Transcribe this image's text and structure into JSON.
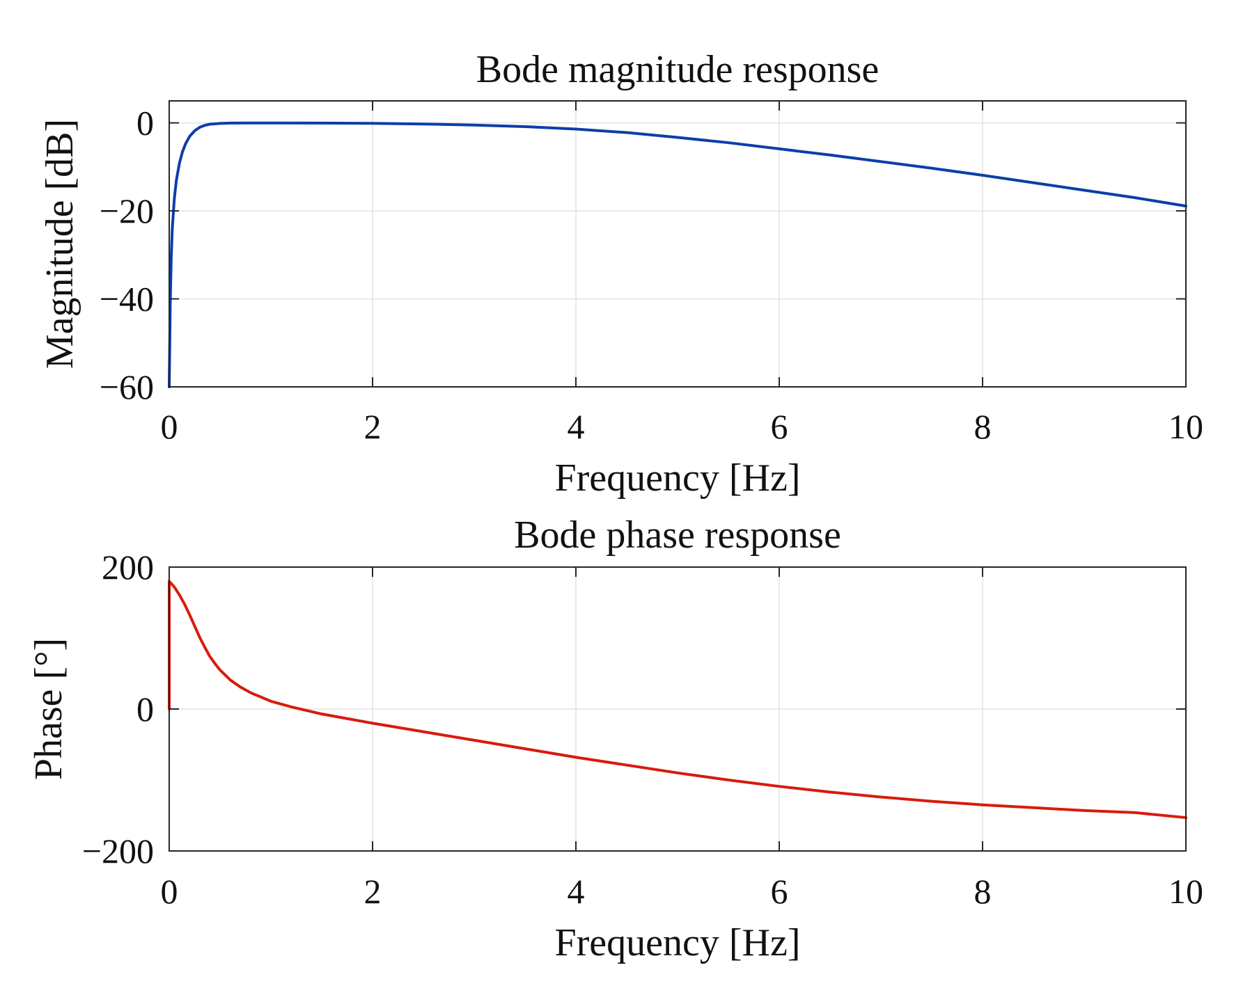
{
  "chart_data": [
    {
      "id": "magnitude",
      "type": "line",
      "title": "Bode magnitude response",
      "xlabel": "Frequency [Hz]",
      "ylabel": "Magnitude [dB]",
      "xlim": [
        0,
        10
      ],
      "ylim": [
        -60,
        5
      ],
      "xticks": [
        0,
        2,
        4,
        6,
        8,
        10
      ],
      "xtick_labels": [
        "0",
        "2",
        "4",
        "6",
        "8",
        "10"
      ],
      "yticks": [
        -60,
        -40,
        -20,
        0
      ],
      "ytick_labels": [
        "−60",
        "−40",
        "−20",
        "0"
      ],
      "grid": true,
      "series": [
        {
          "name": "Magnitude",
          "color": "#0b3fa8",
          "x": [
            0.0,
            0.01,
            0.02,
            0.03,
            0.05,
            0.07,
            0.1,
            0.13,
            0.16,
            0.2,
            0.25,
            0.3,
            0.35,
            0.4,
            0.5,
            0.6,
            0.8,
            1.0,
            1.5,
            2.0,
            2.5,
            3.0,
            3.5,
            4.0,
            4.5,
            5.0,
            5.5,
            6.0,
            6.5,
            7.0,
            7.5,
            8.0,
            8.5,
            9.0,
            9.5,
            10.0
          ],
          "y": [
            -60,
            -41.2,
            -30.5,
            -24.1,
            -17.3,
            -13.1,
            -9.2,
            -6.6,
            -4.8,
            -3.1,
            -1.8,
            -1.0,
            -0.55,
            -0.3,
            -0.12,
            -0.05,
            -0.02,
            -0.02,
            -0.05,
            -0.1,
            -0.25,
            -0.5,
            -0.85,
            -1.4,
            -2.2,
            -3.3,
            -4.5,
            -5.9,
            -7.3,
            -8.8,
            -10.3,
            -11.9,
            -13.6,
            -15.3,
            -17.0,
            -18.9
          ]
        }
      ]
    },
    {
      "id": "phase",
      "type": "line",
      "title": "Bode phase response",
      "xlabel": "Frequency [Hz]",
      "ylabel": "Phase [°]",
      "xlim": [
        0,
        10
      ],
      "ylim": [
        -200,
        200
      ],
      "xticks": [
        0,
        2,
        4,
        6,
        8,
        10
      ],
      "xtick_labels": [
        "0",
        "2",
        "4",
        "6",
        "8",
        "10"
      ],
      "yticks": [
        -200,
        0,
        200
      ],
      "ytick_labels": [
        "−200",
        "0",
        "200"
      ],
      "grid": true,
      "series": [
        {
          "name": "Phase",
          "color": "#d81b0c",
          "x": [
            0.0,
            0.0,
            0.05,
            0.1,
            0.15,
            0.2,
            0.25,
            0.3,
            0.35,
            0.4,
            0.45,
            0.5,
            0.6,
            0.7,
            0.8,
            1.0,
            1.2,
            1.5,
            2.0,
            2.5,
            3.0,
            3.5,
            4.0,
            4.5,
            5.0,
            5.5,
            6.0,
            6.5,
            7.0,
            7.5,
            8.0,
            8.5,
            9.0,
            9.5,
            10.0
          ],
          "y": [
            0,
            180,
            172,
            161,
            148,
            133,
            117,
            101,
            87,
            74,
            64,
            55,
            41,
            31,
            23,
            11,
            3,
            -7,
            -20,
            -32,
            -44,
            -56,
            -68,
            -79,
            -90,
            -100,
            -109,
            -117,
            -124,
            -130,
            -135,
            -139,
            -143,
            -146,
            -153
          ]
        }
      ]
    }
  ]
}
